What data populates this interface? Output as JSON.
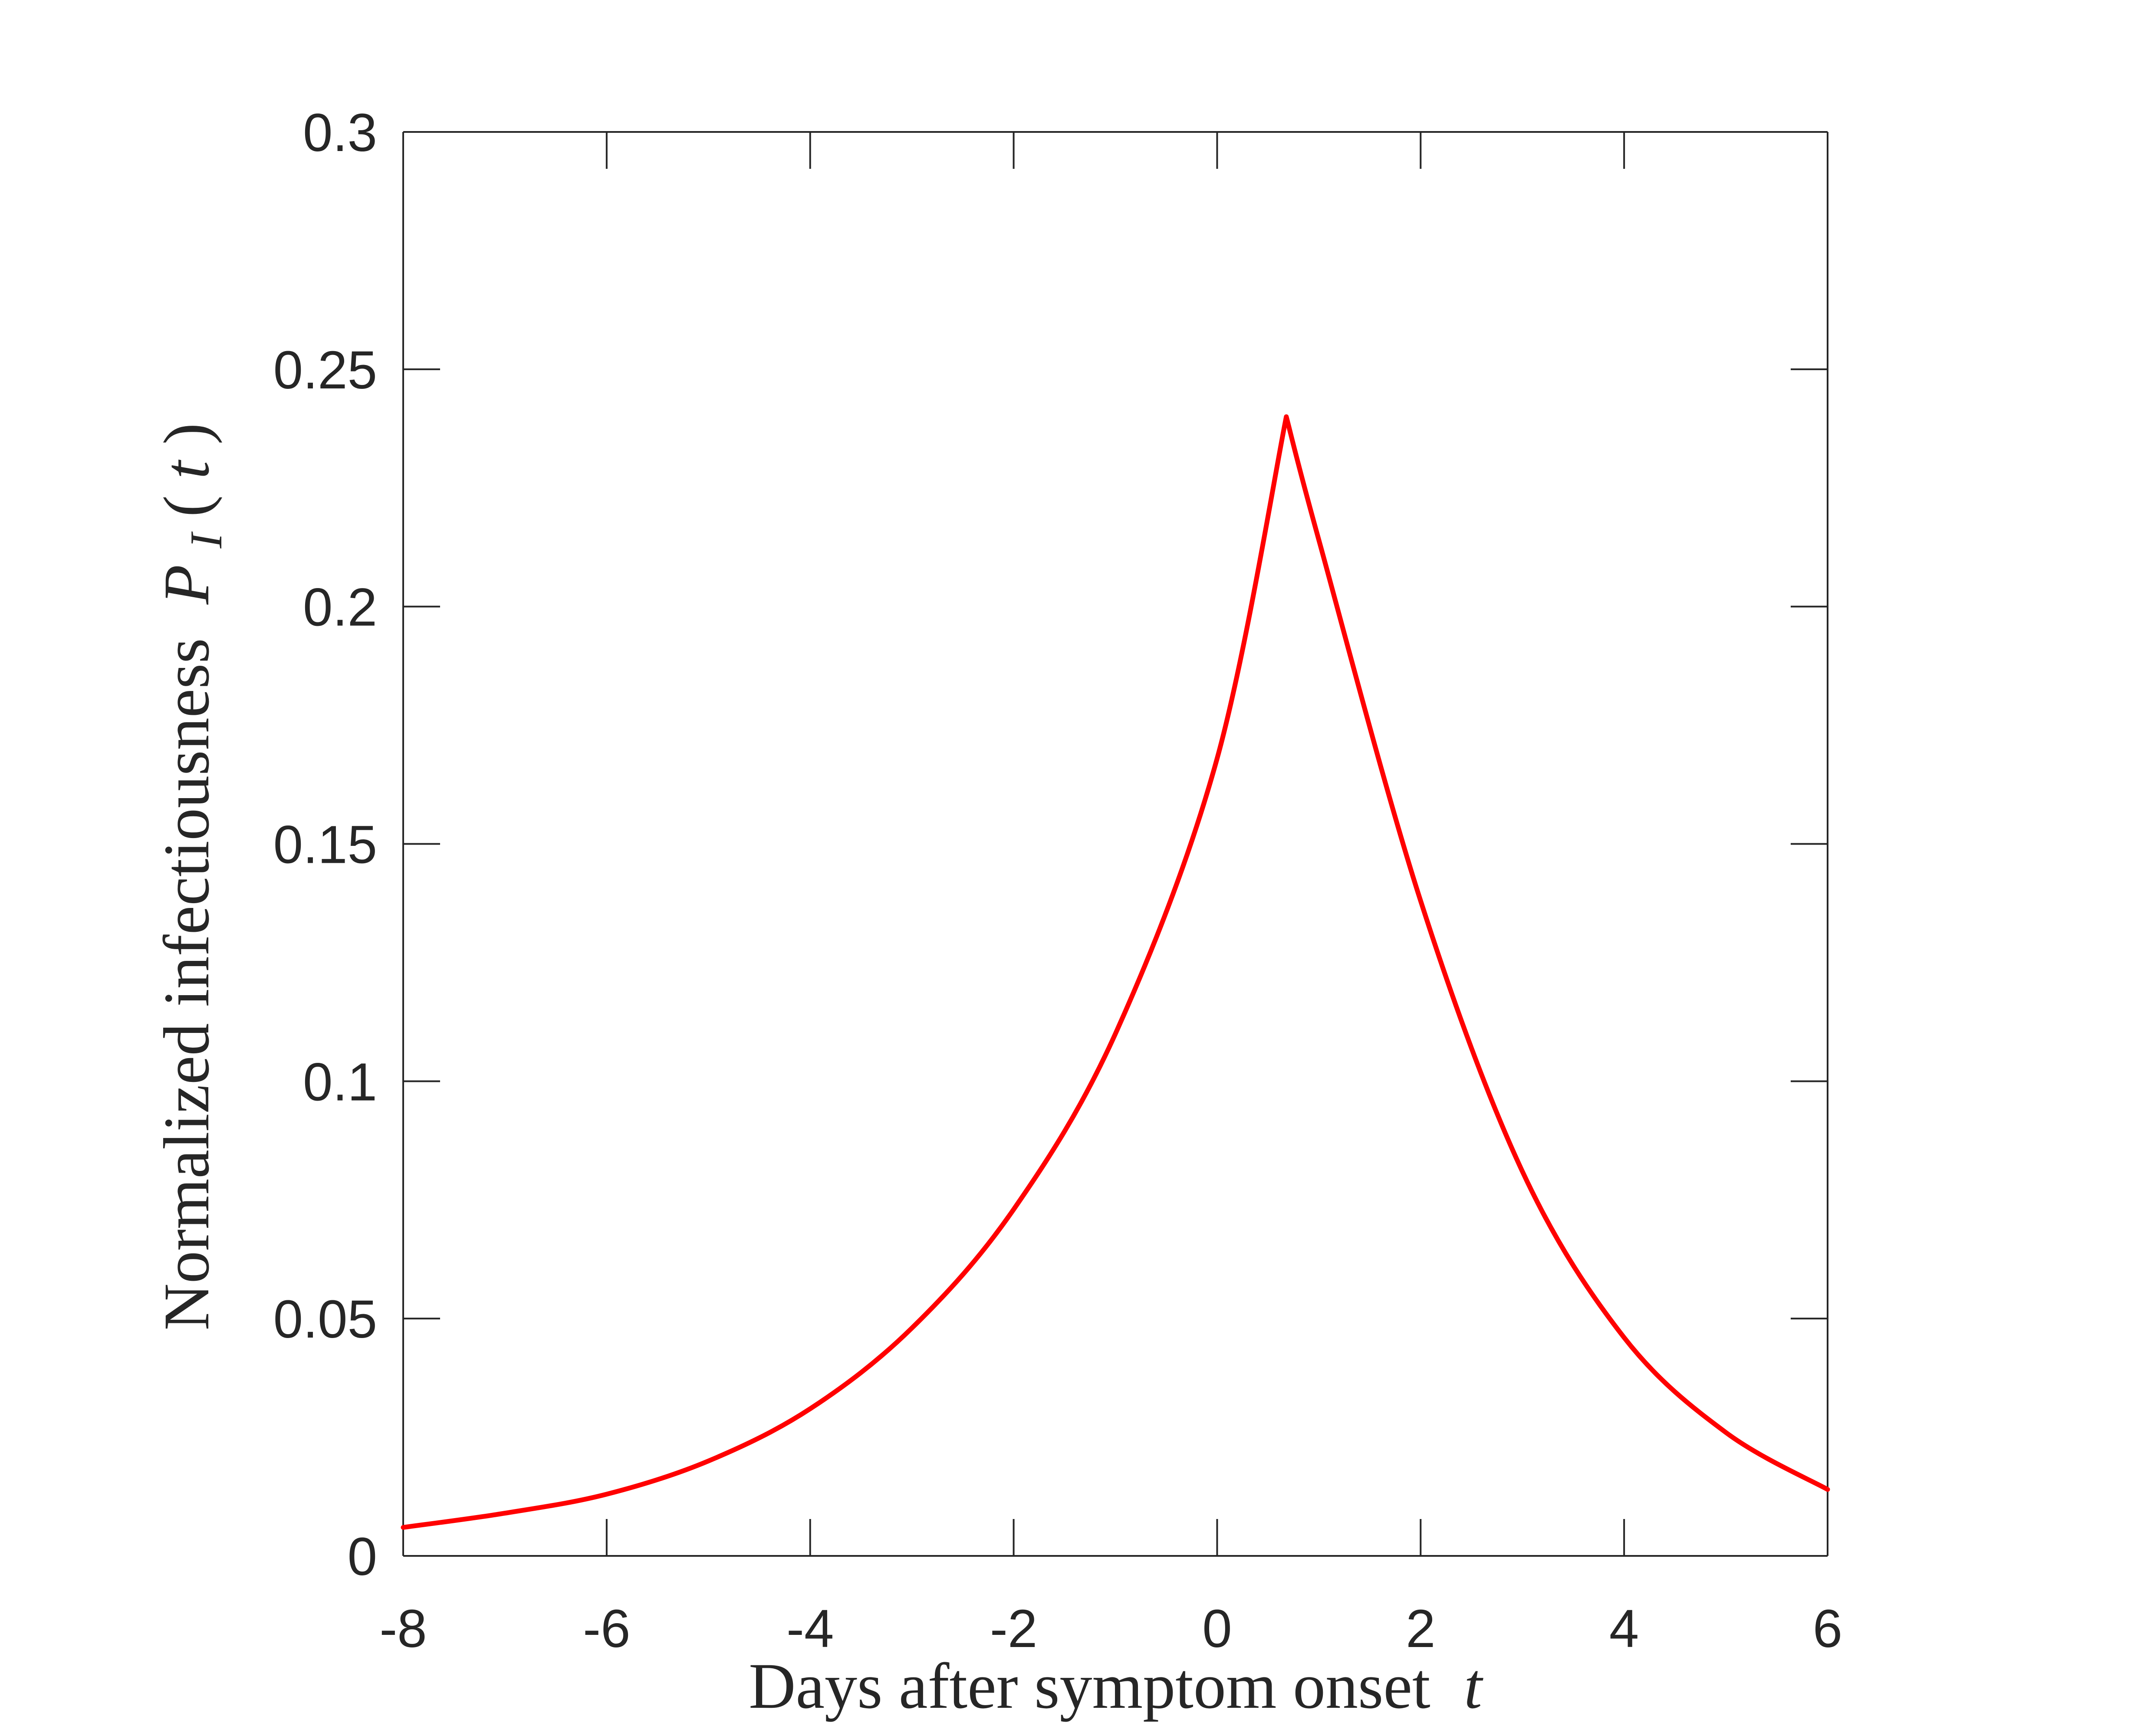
{
  "chart_data": {
    "type": "line",
    "title": "",
    "xlabel_text": "Days after symptom onset",
    "xlabel_var": "t",
    "ylabel_text": "Normalized infectiousness",
    "ylabel_sym": "P",
    "ylabel_sub": "I",
    "ylabel_arg": "t",
    "xlim": [
      -8,
      6
    ],
    "ylim": [
      0,
      0.3
    ],
    "xticks": [
      -8,
      -6,
      -4,
      -2,
      0,
      2,
      4,
      6
    ],
    "xtick_labels": [
      "-8",
      "-6",
      "-4",
      "-2",
      "0",
      "2",
      "4",
      "6"
    ],
    "yticks": [
      0,
      0.05,
      0.1,
      0.15,
      0.2,
      0.25,
      0.3
    ],
    "ytick_labels": [
      "0",
      "0.05",
      "0.1",
      "0.15",
      "0.2",
      "0.25",
      "0.3"
    ],
    "grid": false,
    "series": [
      {
        "color": "#ff0000",
        "x": [
          -8,
          -7,
          -6,
          -5,
          -4,
          -3,
          -2,
          -1,
          0,
          0.68,
          1,
          2,
          3,
          4,
          5,
          6
        ],
        "y": [
          0.006,
          0.009,
          0.013,
          0.02,
          0.031,
          0.048,
          0.073,
          0.11,
          0.168,
          0.24,
          0.214,
          0.138,
          0.081,
          0.046,
          0.026,
          0.014
        ]
      }
    ]
  }
}
